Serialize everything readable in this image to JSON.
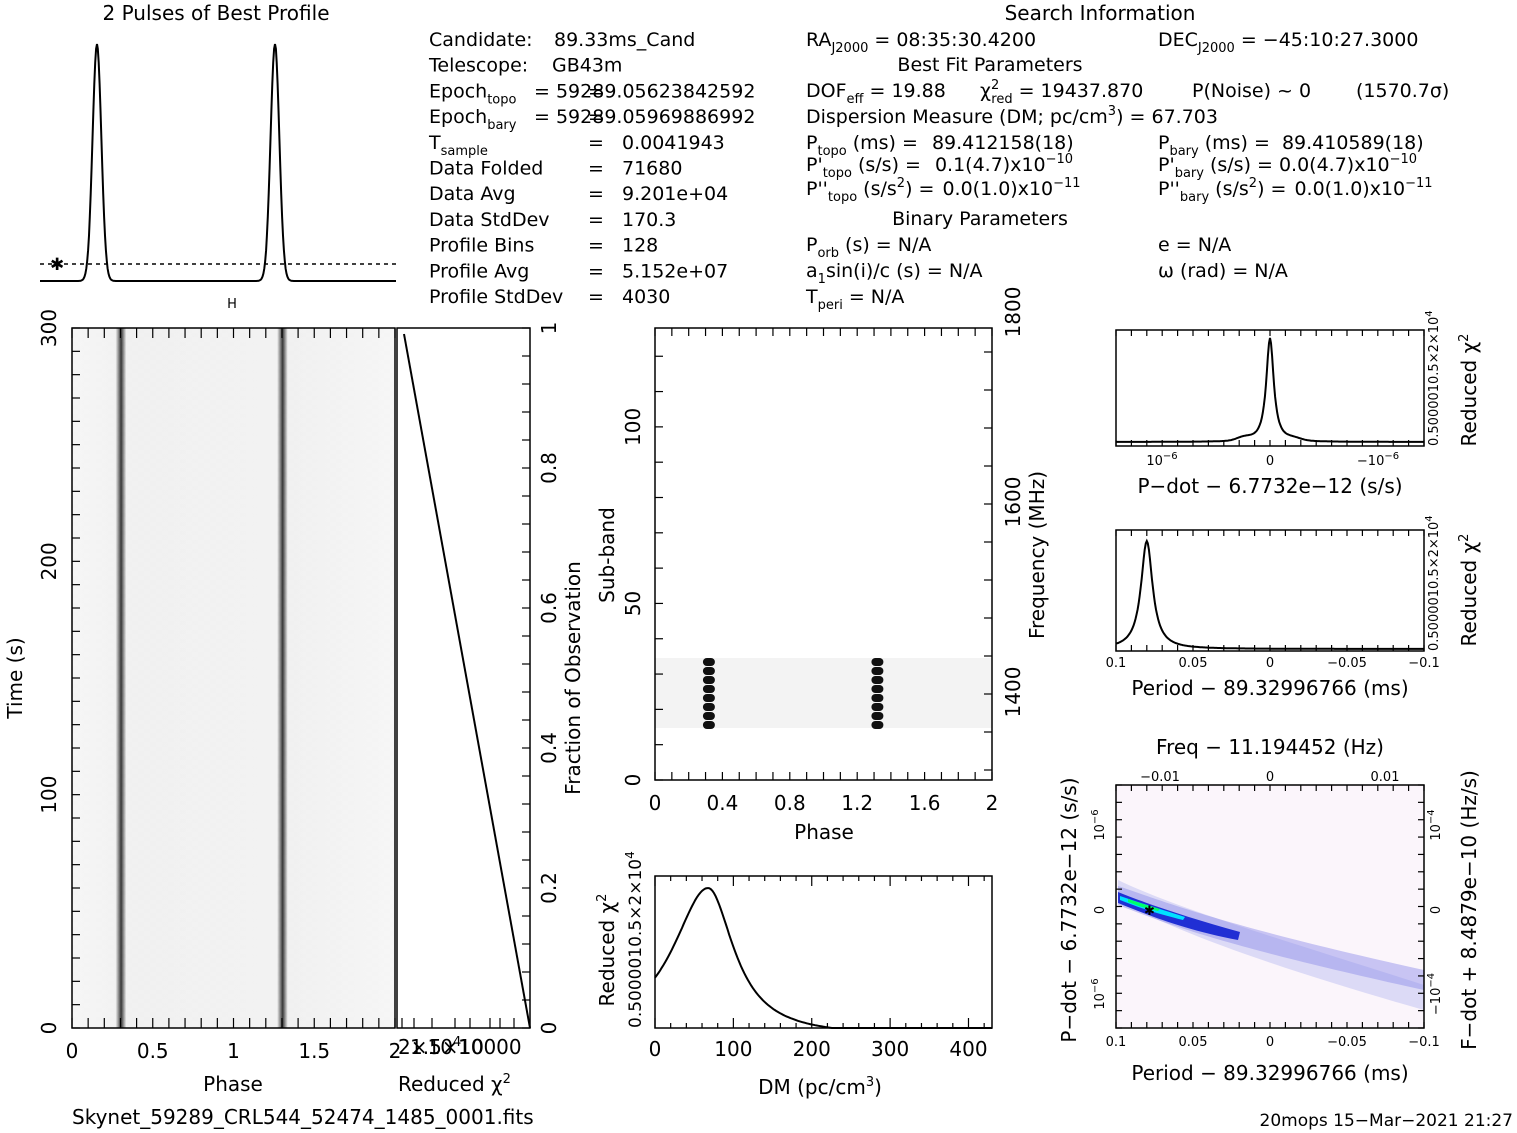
{
  "profile": {
    "title": "2 Pulses of Best Profile",
    "pulse_phases": [
      0.32,
      1.32
    ]
  },
  "search_info": {
    "title": "Search Information",
    "left": [
      {
        "label": "Candidate:",
        "sep": "",
        "value": "89.33ms_Cand"
      },
      {
        "label": "Telescope:",
        "sep": "",
        "value": "GB43m"
      },
      {
        "label": "Epoch",
        "sub": "topo",
        "sep": "=",
        "value": "59289.05623842592"
      },
      {
        "label": "Epoch",
        "sub": "bary",
        "sep": "=",
        "value": "59289.05969886992"
      },
      {
        "label": "T",
        "sub": "sample",
        "sep": "=",
        "value": "0.0041943"
      },
      {
        "label": "Data Folded",
        "sep": "=",
        "value": "71680"
      },
      {
        "label": "Data Avg",
        "sep": "=",
        "value": "9.201e+04"
      },
      {
        "label": "Data StdDev",
        "sep": "=",
        "value": "170.3"
      },
      {
        "label": "Profile Bins",
        "sep": "=",
        "value": "128"
      },
      {
        "label": "Profile Avg",
        "sep": "=",
        "value": "5.152e+07"
      },
      {
        "label": "Profile StdDev",
        "sep": "=",
        "value": "4030"
      }
    ],
    "ra": {
      "label": "RA",
      "sub": "J2000",
      "value": "= 08:35:30.4200"
    },
    "dec": {
      "label": "DEC",
      "sub": "J2000",
      "value": "= −45:10:27.3000"
    },
    "best_fit_title": "Best Fit Parameters",
    "dof": {
      "label": "DOF",
      "sub": "eff",
      "value": "= 19.88"
    },
    "chi2": {
      "label": "χ",
      "sup": "2",
      "sub": "red",
      "value": "= 19437.870"
    },
    "pnoise": "P(Noise) ~ 0",
    "sigma": "(1570.7σ)",
    "dm_line": {
      "text": "Dispersion Measure (DM; pc/cm",
      "sup": "3",
      "end": ") = 67.703"
    },
    "p_topo": {
      "label": "P",
      "sub": "topo",
      "unit": "(ms) =",
      "value": "89.412158(18)"
    },
    "p_bary": {
      "label": "P",
      "sub": "bary",
      "unit": "(ms) =",
      "value": "89.410589(18)"
    },
    "pd_topo": {
      "label": "P'",
      "sub": "topo",
      "unit": "(s/s) =",
      "value": "0.1(4.7)x10",
      "exp": "−10"
    },
    "pd_bary": {
      "label": "P'",
      "sub": "bary",
      "unit": "(s/s) =",
      "value": "0.0(4.7)x10",
      "exp": "−10"
    },
    "pdd_topo": {
      "label": "P''",
      "sub": "topo",
      "unit": "(s/s",
      "usup": "2",
      "unit2": ") =",
      "value": "0.0(1.0)x10",
      "exp": "−11"
    },
    "pdd_bary": {
      "label": "P''",
      "sub": "bary",
      "unit": "(s/s",
      "usup": "2",
      "unit2": ") =",
      "value": "0.0(1.0)x10",
      "exp": "−11"
    },
    "binary_title": "Binary Parameters",
    "porb": {
      "label": "P",
      "sub": "orb",
      "value": "(s) = N/A"
    },
    "a1sini": {
      "text": "a",
      "sub": "1",
      "rest": "sin(i)/c (s) = N/A"
    },
    "tperi": {
      "label": "T",
      "sub": "peri",
      "value": "= N/A"
    },
    "ecc": "e = N/A",
    "omega": "ω (rad) = N/A"
  },
  "time_phase": {
    "xlabel": "Phase",
    "ylabel": "Time (s)",
    "xticks": [
      "0",
      "0.5",
      "1",
      "1.5",
      "2"
    ],
    "yticks": [
      "0",
      "100",
      "200",
      "300"
    ],
    "harmonic_marker": "H"
  },
  "redchi_vs_time": {
    "xlabel": "Reduced χ",
    "xlabel_sup": "2",
    "right_label": "Fraction of Observation",
    "right_ticks": [
      "0",
      "0.2",
      "0.4",
      "0.6",
      "0.8",
      "1"
    ],
    "bottom_ticks_text": "2×10",
    "bottom_ticks_overlap": "1.5×10",
    "bottom_ticks_text2": "10000",
    "bottom_exp": "4"
  },
  "subband": {
    "xlabel": "Phase",
    "ylabel": "Sub-band",
    "right_label": "Frequency (MHz)",
    "xticks": [
      "0",
      "0.4",
      "0.8",
      "1.2",
      "1.6",
      "2"
    ],
    "yticks": [
      "0",
      "50",
      "100"
    ],
    "rticks": [
      "1400",
      "1600",
      "1800"
    ]
  },
  "dm_curve": {
    "xlabel": "DM (pc/cm",
    "xlabel_sup": "3",
    "xlabel_end": ")",
    "ylabel": "Reduced χ",
    "ylabel_sup": "2",
    "xticks": [
      "0",
      "100",
      "200",
      "300",
      "400"
    ],
    "ytick_text": "0.5000010.5×2×10",
    "ytick_exp": "4"
  },
  "pdot_curve": {
    "xlabel": "P−dot − 6.7732e−12 (s/s)",
    "ylabel": "Reduced χ",
    "ylabel_sup": "2",
    "xticks": [
      "10",
      "0",
      "−10"
    ],
    "xtick_exp": "−6",
    "ytick_text": "0.5000010.5×2×10",
    "ytick_exp": "4"
  },
  "period_curve": {
    "xlabel": "Period − 89.32996766 (ms)",
    "ylabel": "Reduced χ",
    "ylabel_sup": "2",
    "xticks": [
      "0.1",
      "0.05",
      "0",
      "−0.05",
      "−0.1"
    ],
    "ytick_text": "0.5000010.5×2×10",
    "ytick_exp": "4"
  },
  "pp_dot_plane": {
    "top_label": "Freq − 11.194452 (Hz)",
    "top_ticks": [
      "−0.01",
      "0",
      "0.01"
    ],
    "xlabel": "Period − 89.32996766 (ms)",
    "xticks": [
      "0.1",
      "0.05",
      "0",
      "−0.05",
      "−0.1"
    ],
    "ylabel": "P−dot − 6.7732e−12 (s/s)",
    "yticks": [
      "10",
      "0",
      "10"
    ],
    "ytick_exps": [
      "−6",
      "",
      "−6"
    ],
    "ylabel_right": "F−dot + 8.4879e−10 (Hz/s)",
    "rticks": [
      "10",
      "0",
      "−10"
    ],
    "rtick_exps": [
      "−4",
      "",
      "−4"
    ]
  },
  "footer": {
    "filename": "Skynet_59289_CRL544_52474_1485_0001.fits",
    "stamp": "20mops  15−Mar−2021 21:27"
  },
  "chart_data": [
    {
      "type": "line",
      "title": "2 Pulses of Best Profile",
      "x": [
        0.0,
        0.32,
        1.0,
        1.32,
        2.0
      ],
      "values": [
        0.0,
        1.0,
        0.0,
        1.0,
        0.0
      ],
      "note_peaks_at_phase": [
        0.32,
        1.32
      ]
    },
    {
      "type": "heatmap",
      "xlabel": "Phase",
      "ylabel": "Time (s)",
      "xlim": [
        0,
        2
      ],
      "ylim": [
        0,
        300
      ],
      "pulse_phases": [
        0.32,
        1.32
      ]
    },
    {
      "type": "heatmap",
      "xlabel": "Phase",
      "ylabel": "Sub-band",
      "xlim": [
        0,
        2
      ],
      "ylim": [
        0,
        128
      ],
      "pulse_phases": [
        0.32,
        1.32
      ],
      "subband_range": [
        15,
        35
      ]
    },
    {
      "type": "line",
      "xlabel": "DM (pc/cm3)",
      "ylabel": "Reduced χ2",
      "xlim": [
        0,
        430
      ],
      "peak_dm": 67.703,
      "x": [
        0,
        20,
        40,
        60,
        67.7,
        80,
        100,
        150,
        200,
        300,
        400,
        430
      ],
      "values": [
        0.45,
        0.6,
        0.8,
        0.96,
        1.0,
        0.92,
        0.68,
        0.33,
        0.17,
        0.06,
        0.01,
        0.0
      ]
    },
    {
      "type": "line",
      "xlabel": "P-dot − 6.7732e-12 (s/s)",
      "ylabel": "Reduced χ2",
      "peak_x": 0
    },
    {
      "type": "line",
      "xlabel": "Period − 89.32996766 (ms)",
      "ylabel": "Reduced χ2",
      "xlim": [
        0.1,
        -0.1
      ],
      "peak_x": 0.08
    }
  ]
}
